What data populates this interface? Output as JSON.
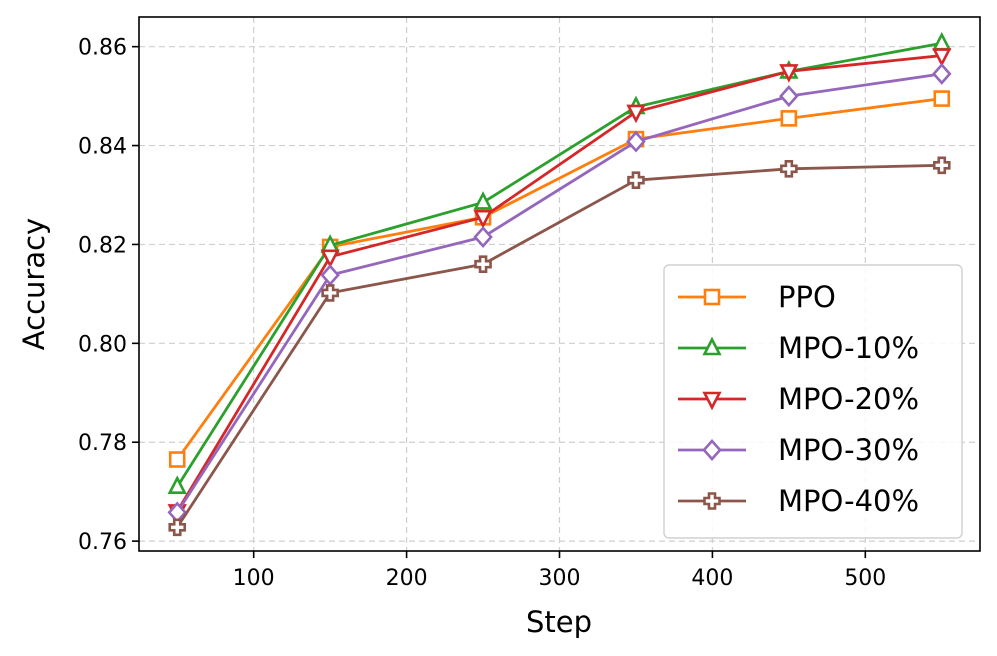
{
  "chart_data": {
    "type": "line",
    "title": "",
    "xlabel": "Step",
    "ylabel": "Accuracy",
    "x": [
      50,
      150,
      250,
      350,
      450,
      550
    ],
    "xlim": [
      25,
      575
    ],
    "ylim": [
      0.758,
      0.866
    ],
    "xticks": [
      100,
      200,
      300,
      400,
      500
    ],
    "yticks": [
      0.76,
      0.78,
      0.8,
      0.82,
      0.84,
      0.86
    ],
    "xtick_labels": [
      "100",
      "200",
      "300",
      "400",
      "500"
    ],
    "ytick_labels": [
      "0.76",
      "0.78",
      "0.80",
      "0.82",
      "0.84",
      "0.86"
    ],
    "grid": true,
    "legend_position": "bottom-right",
    "series": [
      {
        "name": "PPO",
        "marker": "square",
        "color": "#ff7f0e",
        "values": [
          0.7765,
          0.8195,
          0.8255,
          0.8413,
          0.8455,
          0.8495
        ]
      },
      {
        "name": "MPO-10%",
        "marker": "triangle-up",
        "color": "#2ca02c",
        "values": [
          0.771,
          0.8198,
          0.8285,
          0.8478,
          0.855,
          0.8607
        ]
      },
      {
        "name": "MPO-20%",
        "marker": "triangle-down",
        "color": "#d62728",
        "values": [
          0.766,
          0.8175,
          0.8255,
          0.8468,
          0.855,
          0.8582
        ]
      },
      {
        "name": "MPO-30%",
        "marker": "diamond",
        "color": "#9467bd",
        "values": [
          0.7658,
          0.8138,
          0.8215,
          0.8408,
          0.85,
          0.8545
        ]
      },
      {
        "name": "MPO-40%",
        "marker": "plus",
        "color": "#8c564b",
        "values": [
          0.7628,
          0.8102,
          0.816,
          0.833,
          0.8353,
          0.836
        ]
      }
    ]
  }
}
